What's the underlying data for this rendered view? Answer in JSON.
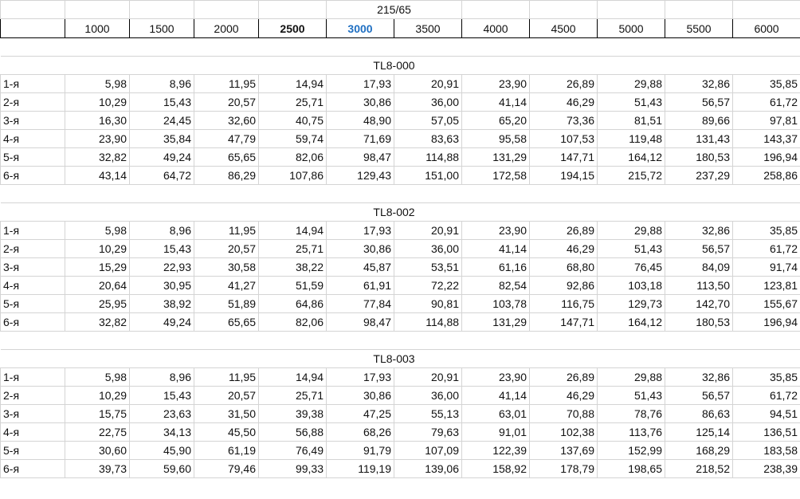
{
  "size_label": "215/65",
  "columns": [
    "1000",
    "1500",
    "2000",
    "2500",
    "3000",
    "3500",
    "4000",
    "4500",
    "5000",
    "5500",
    "6000"
  ],
  "column_styles": [
    "",
    "",
    "",
    "bold",
    "blue",
    "",
    "",
    "",
    "",
    "",
    ""
  ],
  "sections": [
    {
      "title": "TL8-000",
      "rows": [
        {
          "label": "1-я",
          "values": [
            "5,98",
            "8,96",
            "11,95",
            "14,94",
            "17,93",
            "20,91",
            "23,90",
            "26,89",
            "29,88",
            "32,86",
            "35,85"
          ]
        },
        {
          "label": "2-я",
          "values": [
            "10,29",
            "15,43",
            "20,57",
            "25,71",
            "30,86",
            "36,00",
            "41,14",
            "46,29",
            "51,43",
            "56,57",
            "61,72"
          ]
        },
        {
          "label": "3-я",
          "values": [
            "16,30",
            "24,45",
            "32,60",
            "40,75",
            "48,90",
            "57,05",
            "65,20",
            "73,36",
            "81,51",
            "89,66",
            "97,81"
          ]
        },
        {
          "label": "4-я",
          "values": [
            "23,90",
            "35,84",
            "47,79",
            "59,74",
            "71,69",
            "83,63",
            "95,58",
            "107,53",
            "119,48",
            "131,43",
            "143,37"
          ]
        },
        {
          "label": "5-я",
          "values": [
            "32,82",
            "49,24",
            "65,65",
            "82,06",
            "98,47",
            "114,88",
            "131,29",
            "147,71",
            "164,12",
            "180,53",
            "196,94"
          ]
        },
        {
          "label": "6-я",
          "values": [
            "43,14",
            "64,72",
            "86,29",
            "107,86",
            "129,43",
            "151,00",
            "172,58",
            "194,15",
            "215,72",
            "237,29",
            "258,86"
          ]
        }
      ]
    },
    {
      "title": "TL8-002",
      "rows": [
        {
          "label": "1-я",
          "values": [
            "5,98",
            "8,96",
            "11,95",
            "14,94",
            "17,93",
            "20,91",
            "23,90",
            "26,89",
            "29,88",
            "32,86",
            "35,85"
          ]
        },
        {
          "label": "2-я",
          "values": [
            "10,29",
            "15,43",
            "20,57",
            "25,71",
            "30,86",
            "36,00",
            "41,14",
            "46,29",
            "51,43",
            "56,57",
            "61,72"
          ]
        },
        {
          "label": "3-я",
          "values": [
            "15,29",
            "22,93",
            "30,58",
            "38,22",
            "45,87",
            "53,51",
            "61,16",
            "68,80",
            "76,45",
            "84,09",
            "91,74"
          ]
        },
        {
          "label": "4-я",
          "values": [
            "20,64",
            "30,95",
            "41,27",
            "51,59",
            "61,91",
            "72,22",
            "82,54",
            "92,86",
            "103,18",
            "113,50",
            "123,81"
          ]
        },
        {
          "label": "5-я",
          "values": [
            "25,95",
            "38,92",
            "51,89",
            "64,86",
            "77,84",
            "90,81",
            "103,78",
            "116,75",
            "129,73",
            "142,70",
            "155,67"
          ]
        },
        {
          "label": "6-я",
          "values": [
            "32,82",
            "49,24",
            "65,65",
            "82,06",
            "98,47",
            "114,88",
            "131,29",
            "147,71",
            "164,12",
            "180,53",
            "196,94"
          ]
        }
      ]
    },
    {
      "title": "TL8-003",
      "rows": [
        {
          "label": "1-я",
          "values": [
            "5,98",
            "8,96",
            "11,95",
            "14,94",
            "17,93",
            "20,91",
            "23,90",
            "26,89",
            "29,88",
            "32,86",
            "35,85"
          ]
        },
        {
          "label": "2-я",
          "values": [
            "10,29",
            "15,43",
            "20,57",
            "25,71",
            "30,86",
            "36,00",
            "41,14",
            "46,29",
            "51,43",
            "56,57",
            "61,72"
          ]
        },
        {
          "label": "3-я",
          "values": [
            "15,75",
            "23,63",
            "31,50",
            "39,38",
            "47,25",
            "55,13",
            "63,01",
            "70,88",
            "78,76",
            "86,63",
            "94,51"
          ]
        },
        {
          "label": "4-я",
          "values": [
            "22,75",
            "34,13",
            "45,50",
            "56,88",
            "68,26",
            "79,63",
            "91,01",
            "102,38",
            "113,76",
            "125,14",
            "136,51"
          ]
        },
        {
          "label": "5-я",
          "values": [
            "30,60",
            "45,90",
            "61,19",
            "76,49",
            "91,79",
            "107,09",
            "122,39",
            "137,69",
            "152,99",
            "168,29",
            "183,58"
          ]
        },
        {
          "label": "6-я",
          "values": [
            "39,73",
            "59,60",
            "79,46",
            "99,33",
            "119,19",
            "139,06",
            "158,92",
            "178,79",
            "198,65",
            "218,52",
            "238,39"
          ]
        }
      ]
    }
  ]
}
